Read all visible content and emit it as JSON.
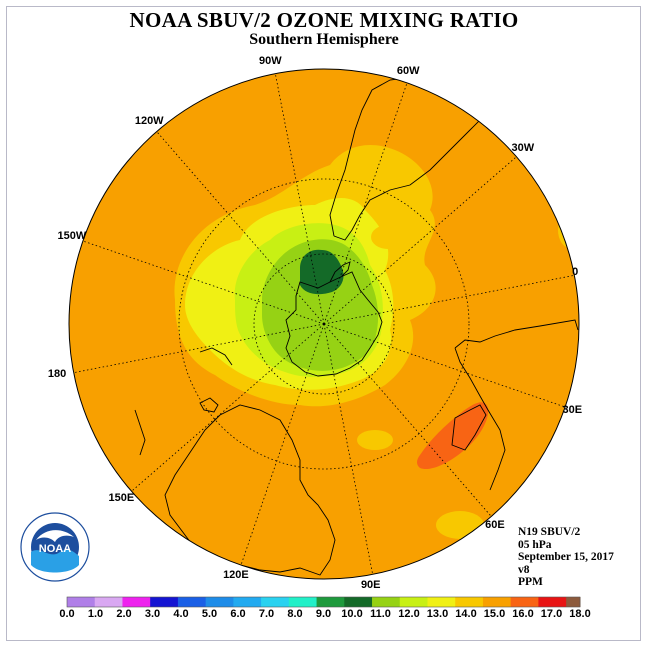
{
  "title": "NOAA SBUV/2 OZONE MIXING RATIO",
  "subtitle": "Southern Hemisphere",
  "longitude_labels": [
    "90W",
    "60W",
    "30W",
    "0",
    "30E",
    "60E",
    "90E",
    "120E",
    "150E",
    "180",
    "150W",
    "120W"
  ],
  "info": {
    "satellite": "N19 SBUV/2",
    "level": "05 hPa",
    "date": "September 15, 2017",
    "version": "v8",
    "units": "PPM"
  },
  "logo": {
    "text": "NOAA",
    "ring_text": "NATIONAL OCEANIC AND ATMOSPHERIC ADMINISTRATION · U.S. DEPARTMENT OF COMMERCE"
  },
  "colorbar": {
    "tick_labels": [
      "0.0",
      "1.0",
      "2.0",
      "3.0",
      "4.0",
      "5.0",
      "6.0",
      "7.0",
      "8.0",
      "9.0",
      "10.0",
      "11.0",
      "12.0",
      "13.0",
      "14.0",
      "15.0",
      "16.0",
      "17.0",
      "18.0"
    ],
    "colors": [
      "#b07fe8",
      "#d9a8f2",
      "#ee22ee",
      "#1414d2",
      "#1a5fe6",
      "#1e8ce8",
      "#22aaf0",
      "#2ad2f0",
      "#22f0c8",
      "#1e9a3c",
      "#146a28",
      "#96d214",
      "#c8f014",
      "#f0f014",
      "#f8c800",
      "#f8a000",
      "#f86414",
      "#e81414",
      "#8c5a3c"
    ]
  },
  "map": {
    "background_level_color": "#f8a000",
    "max_region_color": "#f86414",
    "min_region_color": "#146a28"
  }
}
